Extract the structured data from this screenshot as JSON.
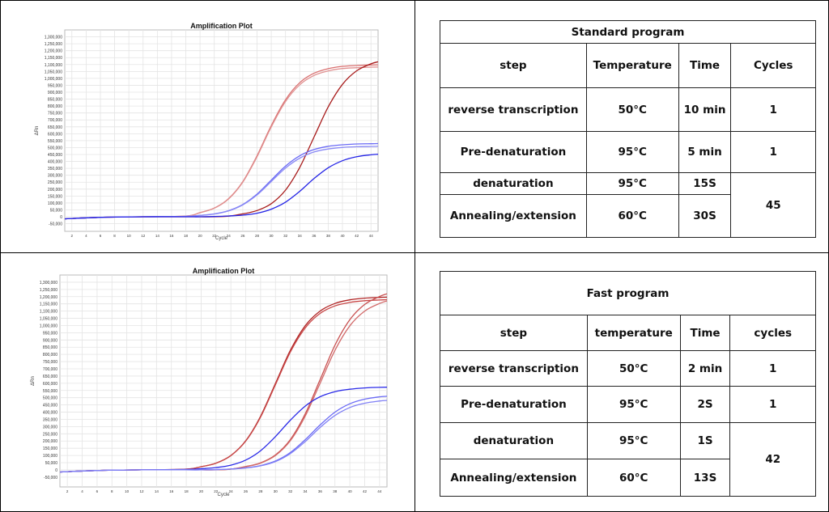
{
  "chart_data": [
    {
      "type": "line",
      "title": "Amplification Plot",
      "xlabel": "Cycle",
      "ylabel": "ΔRn",
      "xlim": [
        1,
        45
      ],
      "ylim": [
        -105000,
        1350000
      ],
      "xticks": [
        2,
        4,
        6,
        8,
        10,
        12,
        14,
        16,
        18,
        20,
        22,
        24,
        26,
        28,
        30,
        32,
        34,
        36,
        38,
        40,
        42,
        44
      ],
      "yticks": [
        -50000,
        0,
        50000,
        100000,
        150000,
        200000,
        250000,
        300000,
        350000,
        400000,
        450000,
        500000,
        550000,
        600000,
        650000,
        700000,
        750000,
        800000,
        850000,
        900000,
        950000,
        1000000,
        1050000,
        1100000,
        1150000,
        1200000,
        1250000,
        1300000
      ],
      "grid": true,
      "x": [
        1,
        6,
        12,
        18,
        20,
        22,
        24,
        26,
        28,
        30,
        32,
        34,
        36,
        38,
        40,
        42,
        44,
        45
      ],
      "series": [
        {
          "color": "#d97070",
          "values": [
            -15000,
            -4000,
            0,
            5000,
            30000,
            63000,
            131000,
            254000,
            441000,
            659000,
            846000,
            969000,
            1037000,
            1070000,
            1087000,
            1093000,
            1097000,
            1098000
          ]
        },
        {
          "color": "#e09090",
          "values": [
            -15000,
            -4000,
            0,
            5000,
            30000,
            62000,
            129000,
            250000,
            434000,
            649000,
            833000,
            954000,
            1021000,
            1054000,
            1071000,
            1077000,
            1081000,
            1082000
          ]
        },
        {
          "color": "#a81c1c",
          "values": [
            -15000,
            -4000,
            0,
            0,
            0,
            0,
            5000,
            21000,
            45000,
            95000,
            193000,
            357000,
            575000,
            794000,
            957000,
            1055000,
            1105000,
            1120000
          ]
        },
        {
          "color": "#6a6af5",
          "values": [
            -15000,
            -4000,
            0,
            3000,
            10000,
            21000,
            44000,
            89000,
            164000,
            265000,
            366000,
            441000,
            486000,
            509000,
            520000,
            526000,
            528000,
            529000
          ]
        },
        {
          "color": "#8a8af5",
          "values": [
            -15000,
            -4000,
            0,
            3000,
            10000,
            20000,
            42000,
            86000,
            158000,
            255000,
            352000,
            424000,
            468000,
            490000,
            501000,
            506000,
            508000,
            509000
          ]
        },
        {
          "color": "#2424e6",
          "values": [
            -15000,
            -4000,
            0,
            0,
            0,
            2000,
            6000,
            12000,
            26000,
            55000,
            106000,
            184000,
            276000,
            354000,
            405000,
            434000,
            448000,
            452000
          ]
        }
      ]
    },
    {
      "type": "line",
      "title": "Amplification Plot",
      "xlabel": "Cycle",
      "ylabel": "ΔRn",
      "xlim": [
        1,
        45
      ],
      "ylim": [
        -118000,
        1350000
      ],
      "xticks": [
        2,
        4,
        6,
        8,
        10,
        12,
        14,
        16,
        18,
        20,
        22,
        24,
        26,
        28,
        30,
        32,
        34,
        36,
        38,
        40,
        42,
        44
      ],
      "yticks": [
        -50000,
        0,
        50000,
        100000,
        150000,
        200000,
        250000,
        300000,
        350000,
        400000,
        450000,
        500000,
        550000,
        600000,
        650000,
        700000,
        750000,
        800000,
        850000,
        900000,
        950000,
        1000000,
        1050000,
        1100000,
        1150000,
        1200000,
        1250000,
        1300000
      ],
      "grid": true,
      "x": [
        1,
        6,
        12,
        18,
        20,
        22,
        24,
        26,
        28,
        30,
        32,
        34,
        36,
        38,
        40,
        42,
        44,
        45
      ],
      "series": [
        {
          "color": "#b02424",
          "values": [
            -15000,
            -4000,
            0,
            5000,
            22000,
            47000,
            100000,
            202000,
            372000,
            600000,
            828000,
            998000,
            1100000,
            1153000,
            1178000,
            1190000,
            1195000,
            1197000
          ]
        },
        {
          "color": "#c84848",
          "values": [
            -15000,
            -4000,
            0,
            5000,
            22000,
            46000,
            99000,
            199000,
            366000,
            591000,
            816000,
            983000,
            1084000,
            1136000,
            1160000,
            1172000,
            1177000,
            1179000
          ]
        },
        {
          "color": "#c85050",
          "values": [
            -15000,
            -4000,
            0,
            0,
            0,
            0,
            5000,
            23000,
            49000,
            104000,
            210000,
            388000,
            625000,
            863000,
            1040000,
            1146000,
            1201000,
            1220000
          ]
        },
        {
          "color": "#d26a6a",
          "values": [
            -15000,
            -4000,
            0,
            0,
            0,
            0,
            5000,
            22000,
            47000,
            100000,
            202000,
            372000,
            600000,
            828000,
            998000,
            1100000,
            1153000,
            1170000
          ]
        },
        {
          "color": "#2a2ae8",
          "values": [
            -15000,
            -4000,
            0,
            3000,
            8000,
            16000,
            33000,
            68000,
            133000,
            231000,
            344000,
            442000,
            507000,
            542000,
            559000,
            568000,
            572000,
            573000
          ]
        },
        {
          "color": "#6a6af5",
          "values": [
            -15000,
            -4000,
            0,
            0,
            0,
            2000,
            6000,
            14000,
            30000,
            62000,
            120000,
            209000,
            311000,
            400000,
            458000,
            490000,
            506000,
            510000
          ]
        },
        {
          "color": "#8080f5",
          "values": [
            -15000,
            -4000,
            0,
            0,
            0,
            2000,
            6000,
            13000,
            28000,
            58000,
            113000,
            196000,
            294000,
            377000,
            432000,
            462000,
            477000,
            481000
          ]
        }
      ]
    }
  ],
  "standard": {
    "title": "Standard program",
    "headers": [
      "step",
      "Temperature",
      "Time",
      "Cycles"
    ],
    "rows": [
      [
        "reverse transcription",
        "50°C",
        "10 min",
        "1"
      ],
      [
        "Pre-denaturation",
        "95°C",
        "5 min",
        "1"
      ],
      [
        "denaturation",
        "95°C",
        "15S",
        "45"
      ],
      [
        "Annealing/extension",
        "60°C",
        "30S"
      ]
    ]
  },
  "fast": {
    "title": "Fast program",
    "headers": [
      "step",
      "temperature",
      "Time",
      "cycles"
    ],
    "rows": [
      [
        "reverse transcription",
        "50°C",
        "2 min",
        "1"
      ],
      [
        "Pre-denaturation",
        "95°C",
        "2S",
        "1"
      ],
      [
        "denaturation",
        "95°C",
        "1S",
        "42"
      ],
      [
        "Annealing/extension",
        "60°C",
        "13S"
      ]
    ]
  }
}
